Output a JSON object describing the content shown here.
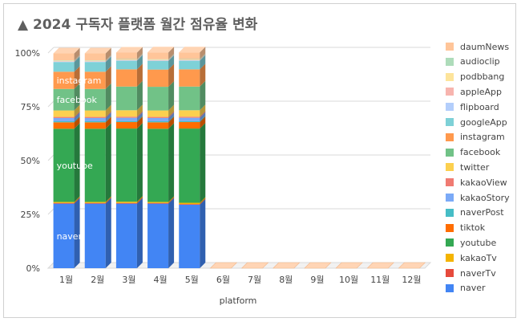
{
  "chart_data": {
    "type": "bar",
    "stacked": true,
    "three_d": true,
    "title": "▲ 2024 구독자 플랫폼 월간 점유율 변화",
    "xlabel": "platform",
    "ylabel": "",
    "categories": [
      "1월",
      "2월",
      "3월",
      "4월",
      "5월",
      "6월",
      "7월",
      "8월",
      "9월",
      "10월",
      "11월",
      "12월"
    ],
    "yticks": [
      "0%",
      "25%",
      "50%",
      "75%",
      "100%"
    ],
    "ylim": [
      0,
      100
    ],
    "grid": true,
    "legend_position": "right",
    "series": [
      {
        "name": "naver",
        "color": "#4285f4",
        "values": [
          30,
          30,
          30,
          30,
          29.5,
          0,
          0,
          0,
          0,
          0,
          0,
          0
        ]
      },
      {
        "name": "naverTv",
        "color": "#e64a3c",
        "values": [
          0.3,
          0.3,
          0.3,
          0.3,
          0.3,
          0,
          0,
          0,
          0,
          0,
          0,
          0
        ]
      },
      {
        "name": "kakaoTv",
        "color": "#f4b400",
        "values": [
          0.5,
          0.5,
          0.6,
          0.5,
          0.6,
          0,
          0,
          0,
          0,
          0,
          0,
          0
        ]
      },
      {
        "name": "youtube",
        "color": "#34a853",
        "values": [
          34,
          34,
          34,
          34,
          34.5,
          0,
          0,
          0,
          0,
          0,
          0,
          0
        ]
      },
      {
        "name": "tiktok",
        "color": "#ff6d01",
        "values": [
          3,
          3,
          3,
          3,
          3,
          0,
          0,
          0,
          0,
          0,
          0,
          0
        ]
      },
      {
        "name": "naverPost",
        "color": "#46bdc6",
        "values": [
          0.5,
          0.5,
          0.5,
          0.5,
          0.5,
          0,
          0,
          0,
          0,
          0,
          0,
          0
        ]
      },
      {
        "name": "kakaoStory",
        "color": "#7baaf7",
        "values": [
          1.5,
          1.5,
          1.5,
          1.5,
          1.5,
          0,
          0,
          0,
          0,
          0,
          0,
          0
        ]
      },
      {
        "name": "kakaoView",
        "color": "#f07b72",
        "values": [
          0.5,
          0.5,
          0.5,
          0.5,
          0.5,
          0,
          0,
          0,
          0,
          0,
          0,
          0
        ]
      },
      {
        "name": "twitter",
        "color": "#fcd04f",
        "values": [
          3,
          3,
          3,
          3,
          3,
          0,
          0,
          0,
          0,
          0,
          0,
          0
        ]
      },
      {
        "name": "facebook",
        "color": "#71c287",
        "values": [
          10,
          10,
          11,
          11,
          11,
          0,
          0,
          0,
          0,
          0,
          0,
          0
        ]
      },
      {
        "name": "instagram",
        "color": "#ff994d",
        "values": [
          8,
          8,
          8,
          8,
          8,
          0,
          0,
          0,
          0,
          0,
          0,
          0
        ]
      },
      {
        "name": "googleApp",
        "color": "#7ed1d7",
        "values": [
          4.5,
          4.5,
          4,
          4,
          4,
          0,
          0,
          0,
          0,
          0,
          0,
          0
        ]
      },
      {
        "name": "flipboard",
        "color": "#b3cefb",
        "values": [
          0.2,
          0.2,
          0.2,
          0.2,
          0.2,
          0,
          0,
          0,
          0,
          0,
          0,
          0
        ]
      },
      {
        "name": "appleApp",
        "color": "#f7b4ae",
        "values": [
          0.2,
          0.2,
          0.2,
          0.2,
          0.2,
          0,
          0,
          0,
          0,
          0,
          0,
          0
        ]
      },
      {
        "name": "podbbang",
        "color": "#fde49b",
        "values": [
          0.2,
          0.2,
          0.2,
          0.2,
          0.2,
          0,
          0,
          0,
          0,
          0,
          0,
          0
        ]
      },
      {
        "name": "audioclip",
        "color": "#aedcba",
        "values": [
          0.2,
          0.2,
          0.2,
          0.2,
          0.2,
          0,
          0,
          0,
          0,
          0,
          0,
          0
        ]
      },
      {
        "name": "daumNews",
        "color": "#ffc599",
        "values": [
          3.2,
          3.2,
          3,
          3.2,
          3.1,
          0,
          0,
          0,
          0,
          0,
          0,
          0
        ]
      }
    ],
    "bar_labels": [
      {
        "series": "naver",
        "text": "naver"
      },
      {
        "series": "youtube",
        "text": "youtube"
      },
      {
        "series": "facebook",
        "text": "facebook"
      },
      {
        "series": "instagram",
        "text": "instagram"
      }
    ]
  }
}
